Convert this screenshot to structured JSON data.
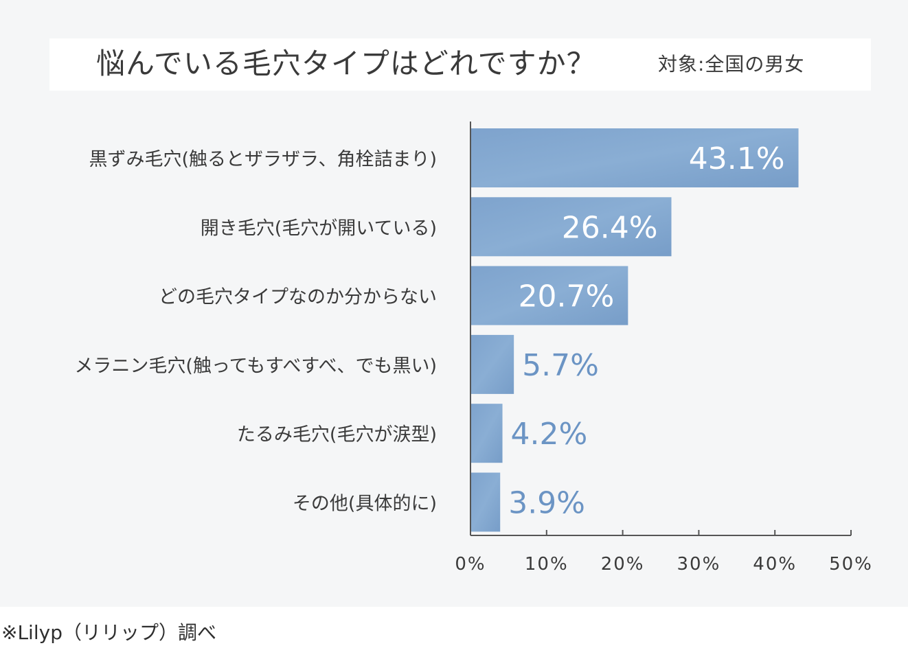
{
  "title": "悩んでいる毛穴タイプはどれですか？",
  "subtitle": "対象:全国の男女",
  "footnote": "※Lilyp（リリップ）調べ",
  "colors": {
    "bar": "#7fa3cc",
    "bar_light": "#9bbadb",
    "label_inside": "#ffffff",
    "label_outside": "#6b94c4",
    "category_text": "#3a3a3a",
    "axis": "#555555",
    "tick_text": "#3a3a3a"
  },
  "chart_data": {
    "type": "bar",
    "orientation": "horizontal",
    "categories": [
      "黒ずみ毛穴(触るとザラザラ、角栓詰まり)",
      "開き毛穴(毛穴が開いている)",
      "どの毛穴タイプなのか分からない",
      "メラニン毛穴(触ってもすべすべ、でも黒い)",
      "たるみ毛穴(毛穴が涙型)",
      "その他(具体的に)"
    ],
    "values": [
      43.1,
      26.4,
      20.7,
      5.7,
      4.2,
      3.9
    ],
    "data_labels": [
      "43.1%",
      "26.4%",
      "20.7%",
      "5.7%",
      "4.2%",
      "3.9%"
    ],
    "xlim": [
      0,
      50
    ],
    "x_ticks": [
      "0%",
      "10%",
      "20%",
      "30%",
      "40%",
      "50%"
    ],
    "grid": false
  }
}
